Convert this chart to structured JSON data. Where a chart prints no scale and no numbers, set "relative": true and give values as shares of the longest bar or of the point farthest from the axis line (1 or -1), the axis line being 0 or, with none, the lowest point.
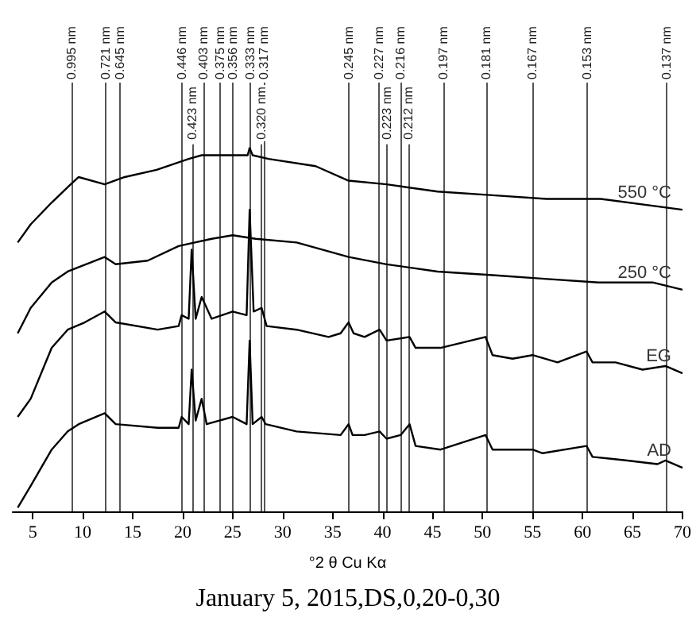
{
  "chart_data": {
    "type": "line",
    "relative": true,
    "xlabel": "°2 θ Cu Kα",
    "xlim": [
      3,
      70
    ],
    "xticks": [
      5,
      10,
      15,
      20,
      25,
      30,
      35,
      40,
      45,
      50,
      55,
      60,
      65,
      70
    ],
    "grid": false,
    "legend": false,
    "annotations": [
      "January 5, 2015,DS,0,20-0,30"
    ],
    "series": [
      {
        "name": "550 °C",
        "color": "#000000",
        "x": [
          3.5,
          4.8,
          6.9,
          8.8,
          9.6,
          12.2,
          14.2,
          17.4,
          20.6,
          21.9,
          23.8,
          26.5,
          26.7,
          27,
          28.6,
          33.3,
          36.6,
          40.4,
          45.5,
          51,
          56.4,
          61.8,
          70
        ],
        "values": [
          0.74,
          0.79,
          0.85,
          0.9,
          0.92,
          0.9,
          0.92,
          0.94,
          0.97,
          0.98,
          0.98,
          0.98,
          1.0,
          0.98,
          0.97,
          0.95,
          0.91,
          0.9,
          0.88,
          0.87,
          0.86,
          0.86,
          0.83
        ]
      },
      {
        "name": "250 °C",
        "color": "#000000",
        "x": [
          3.5,
          4.8,
          6.9,
          8.5,
          12.2,
          13.3,
          16.5,
          19.6,
          22.9,
          25,
          27.3,
          31.4,
          36.6,
          40.4,
          45.5,
          51,
          56.2,
          61.6,
          67,
          70
        ],
        "values": [
          0.49,
          0.56,
          0.63,
          0.66,
          0.7,
          0.68,
          0.69,
          0.73,
          0.75,
          0.76,
          0.75,
          0.74,
          0.7,
          0.68,
          0.66,
          0.65,
          0.64,
          0.63,
          0.63,
          0.61
        ]
      },
      {
        "name": "EG",
        "color": "#000000",
        "x": [
          3.5,
          4.8,
          6.9,
          8.5,
          10.2,
          12.2,
          13.3,
          17.5,
          19.6,
          19.9,
          20.6,
          20.9,
          21.3,
          21.9,
          22.9,
          25,
          26.4,
          26.7,
          27.1,
          27.9,
          28.4,
          31.4,
          34.6,
          35.8,
          36.6,
          37.1,
          38.2,
          39.7,
          40.4,
          42.7,
          43.3,
          45.8,
          50.3,
          51,
          53,
          55,
          57.5,
          60.4,
          61,
          63.3,
          66,
          68.3,
          70
        ],
        "values": [
          0.26,
          0.31,
          0.45,
          0.5,
          0.52,
          0.55,
          0.52,
          0.5,
          0.51,
          0.54,
          0.53,
          0.72,
          0.53,
          0.59,
          0.53,
          0.55,
          0.54,
          0.83,
          0.55,
          0.56,
          0.51,
          0.5,
          0.48,
          0.49,
          0.52,
          0.49,
          0.48,
          0.5,
          0.47,
          0.48,
          0.45,
          0.45,
          0.48,
          0.43,
          0.42,
          0.43,
          0.41,
          0.44,
          0.41,
          0.41,
          0.39,
          0.4,
          0.38
        ]
      },
      {
        "name": "AD",
        "color": "#000000",
        "x": [
          3.5,
          4.8,
          6.9,
          8.5,
          9.6,
          12.2,
          13.3,
          17.5,
          19.6,
          19.9,
          20.6,
          20.9,
          21.3,
          21.9,
          22.4,
          25,
          26.4,
          26.7,
          27,
          27.9,
          28.3,
          31.4,
          35.8,
          36.6,
          37,
          38.2,
          39.7,
          40.4,
          41.8,
          42.7,
          43.3,
          45.8,
          50.3,
          51,
          55,
          56,
          60.4,
          61,
          64.5,
          67.5,
          68.3,
          70
        ],
        "values": [
          0.01,
          0.07,
          0.17,
          0.22,
          0.24,
          0.27,
          0.24,
          0.23,
          0.23,
          0.26,
          0.24,
          0.39,
          0.25,
          0.31,
          0.24,
          0.26,
          0.24,
          0.47,
          0.24,
          0.26,
          0.24,
          0.22,
          0.21,
          0.24,
          0.21,
          0.21,
          0.22,
          0.2,
          0.21,
          0.24,
          0.18,
          0.17,
          0.21,
          0.17,
          0.17,
          0.16,
          0.18,
          0.15,
          0.14,
          0.13,
          0.14,
          0.12
        ]
      }
    ],
    "ref_lines": [
      {
        "axis": "x",
        "value": 8.88,
        "label": "0.995 nm"
      },
      {
        "axis": "x",
        "value": 12.27,
        "label": "0.721 nm"
      },
      {
        "axis": "x",
        "value": 13.72,
        "label": "0.645 nm"
      },
      {
        "axis": "x",
        "value": 19.89,
        "label": "0.446 nm"
      },
      {
        "axis": "x",
        "value": 20.98,
        "label": "0.423 nm"
      },
      {
        "axis": "x",
        "value": 22.04,
        "label": "0.403 nm"
      },
      {
        "axis": "x",
        "value": 23.71,
        "label": "0.375 nm"
      },
      {
        "axis": "x",
        "value": 24.99,
        "label": "0.356 nm"
      },
      {
        "axis": "x",
        "value": 26.75,
        "label": "0.333 nm"
      },
      {
        "axis": "x",
        "value": 27.86,
        "label": "0.320 nm"
      },
      {
        "axis": "x",
        "value": 28.13,
        "label": "0.317 nm"
      },
      {
        "axis": "x",
        "value": 36.65,
        "label": "0.245 nm"
      },
      {
        "axis": "x",
        "value": 39.67,
        "label": "0.227 nm"
      },
      {
        "axis": "x",
        "value": 40.41,
        "label": "0.223 nm"
      },
      {
        "axis": "x",
        "value": 41.78,
        "label": "0.216 nm"
      },
      {
        "axis": "x",
        "value": 42.61,
        "label": "0.212 nm"
      },
      {
        "axis": "x",
        "value": 46.04,
        "label": "0.197 nm"
      },
      {
        "axis": "x",
        "value": 50.38,
        "label": "0.181 nm"
      },
      {
        "axis": "x",
        "value": 54.94,
        "label": "0.167 nm"
      },
      {
        "axis": "x",
        "value": 60.46,
        "label": "0.153 nm"
      },
      {
        "axis": "x",
        "value": 68.43,
        "label": "0.137 nm"
      }
    ]
  }
}
